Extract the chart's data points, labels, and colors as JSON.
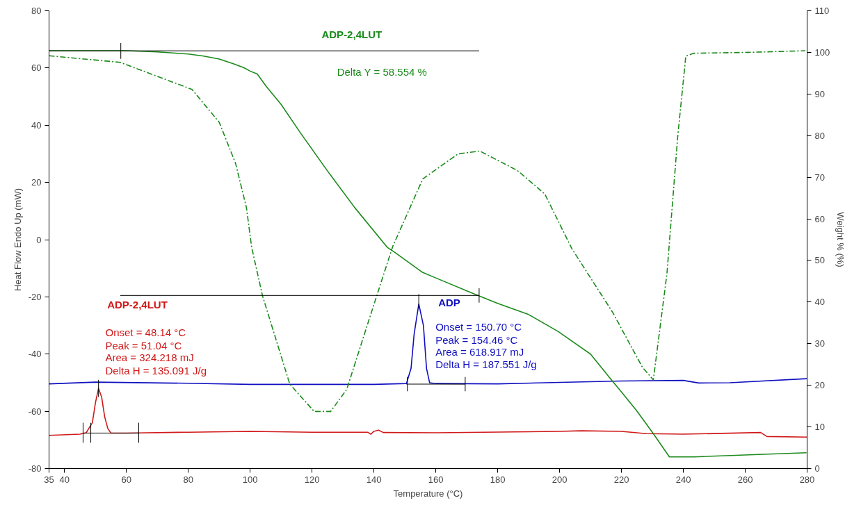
{
  "chart_data": {
    "type": "line",
    "xlabel": "Temperature (°C)",
    "ylabel": "Heat Flow Endo Up (mW)",
    "y2label": "Weight % (%)",
    "xlim": [
      35,
      280
    ],
    "xticks": [
      35,
      40,
      60,
      80,
      100,
      120,
      140,
      160,
      180,
      200,
      220,
      240,
      260,
      280
    ],
    "ylim": [
      -80,
      80
    ],
    "yticks": [
      -80,
      -60,
      -40,
      -20,
      0,
      20,
      40,
      60,
      80
    ],
    "y2lim": [
      0,
      110
    ],
    "y2ticks": [
      0,
      10,
      20,
      30,
      40,
      50,
      60,
      70,
      80,
      90,
      100,
      110
    ],
    "grid": false,
    "marker": "none",
    "series": [
      {
        "color": "#d01818",
        "line_style": "solid",
        "x": [
          35,
          45,
          47,
          49,
          50,
          51,
          52,
          53,
          54,
          55,
          60,
          80,
          100,
          120,
          138,
          139,
          140,
          141.5,
          143,
          160,
          200,
          207,
          220,
          228,
          240,
          265,
          267,
          280
        ],
        "values": [
          -68.4,
          -68,
          -67.5,
          -64,
          -57,
          -52,
          -55,
          -62,
          -66,
          -67.6,
          -67.6,
          -67.3,
          -67,
          -67.3,
          -67.3,
          -68,
          -67,
          -66.6,
          -67.4,
          -67.5,
          -67,
          -66.8,
          -67,
          -67.8,
          -68,
          -67.4,
          -68.8,
          -69
        ]
      },
      {
        "color": "#1010c0",
        "line_style": "solid",
        "x": [
          35,
          50,
          80,
          100,
          140,
          150.5,
          152,
          153,
          154.5,
          156,
          157,
          158,
          160,
          180,
          200,
          220,
          240,
          245,
          255,
          280
        ],
        "values": [
          -50.4,
          -49.8,
          -50.2,
          -50.6,
          -50.6,
          -50.3,
          -45,
          -33,
          -22.5,
          -30,
          -45,
          -50,
          -50.3,
          -50.4,
          -49.9,
          -49.4,
          -49.2,
          -50.1,
          -50,
          -48.6
        ]
      },
      {
        "color": "#1a8a1a",
        "line_style": "solid",
        "axis": "y2",
        "x": [
          35,
          60,
          70,
          80,
          85,
          90,
          94.4,
          98,
          100,
          102.3,
          105,
          110,
          116.3,
          125,
          133.8,
          144.4,
          147,
          155.8,
          160,
          172.6,
          180,
          190,
          199.6,
          210,
          217.1,
          220,
          225,
          230.3,
          235.5,
          243.4,
          279.8
        ],
        "values": [
          100.4,
          100.4,
          100.1,
          99.6,
          99.1,
          98.4,
          97.3,
          96.3,
          95.5,
          94.8,
          92,
          87.5,
          80.6,
          71.5,
          62.7,
          53.1,
          51.8,
          47.1,
          45.8,
          41.9,
          39.7,
          37,
          32.9,
          27.5,
          21,
          18.4,
          13.8,
          8.4,
          2.8,
          2.8,
          3.8
        ]
      },
      {
        "color": "#1a8a1a",
        "line_style": "dashdot",
        "axis": "y2",
        "x": [
          35,
          58,
          81.2,
          90,
          95.3,
          98.8,
          100.5,
          104,
          112.8,
          120.7,
          126,
          131.2,
          140.9,
          146.1,
          155.8,
          167.2,
          174.2,
          186.4,
          195.2,
          204,
          217.1,
          226.8,
          230.3,
          234.7,
          238.2,
          240.8,
          243.4,
          261,
          279.4
        ],
        "values": [
          99.2,
          97.6,
          91.1,
          83.2,
          73.3,
          62.7,
          53.1,
          41.5,
          20.3,
          13.7,
          13.7,
          19,
          41.5,
          53.4,
          69.6,
          75.6,
          76.3,
          71.6,
          66,
          52.8,
          37.6,
          24.3,
          21.3,
          46.8,
          79.9,
          99.1,
          99.8,
          100,
          100.4
        ]
      },
      {
        "color": "#000000",
        "line_style": "solid",
        "x": [
          35,
          174
        ],
        "values": [
          66,
          66
        ]
      },
      {
        "color": "#000000",
        "line_style": "solid",
        "x": [
          58,
          174
        ],
        "values": [
          -19.5,
          -19.5
        ]
      },
      {
        "color": "#000000",
        "line_style": "solid",
        "x": [
          46,
          64
        ],
        "values": [
          -67.6,
          -67.6
        ]
      },
      {
        "color": "#000000",
        "line_style": "solid",
        "x": [
          150.5,
          169.5
        ],
        "values": [
          -50.5,
          -50.5
        ]
      },
      {
        "color": "#000000",
        "line_style": "solid",
        "x": [
          58.2,
          58.2
        ],
        "values": [
          63.2,
          68.7
        ]
      },
      {
        "color": "#000000",
        "line_style": "solid",
        "x": [
          174,
          174
        ],
        "values": [
          -22,
          -17
        ]
      },
      {
        "color": "#000000",
        "line_style": "solid",
        "x": [
          46,
          46
        ],
        "values": [
          -71,
          -64
        ]
      },
      {
        "color": "#000000",
        "line_style": "solid",
        "x": [
          48.5,
          48.5
        ],
        "values": [
          -71,
          -64
        ]
      },
      {
        "color": "#000000",
        "line_style": "solid",
        "x": [
          64,
          64
        ],
        "values": [
          -71,
          -64
        ]
      },
      {
        "color": "#000000",
        "line_style": "solid",
        "x": [
          51,
          51
        ],
        "values": [
          -55,
          -49
        ]
      },
      {
        "color": "#000000",
        "line_style": "solid",
        "x": [
          150.8,
          150.8
        ],
        "values": [
          -53,
          -48
        ]
      },
      {
        "color": "#000000",
        "line_style": "solid",
        "x": [
          154.5,
          154.5
        ],
        "values": [
          -24,
          -19
        ]
      },
      {
        "color": "#000000",
        "line_style": "solid",
        "x": [
          169.5,
          169.5
        ],
        "values": [
          -53,
          -48
        ]
      }
    ],
    "annotations": [
      "ADP-2,4LUT",
      "Delta Y = 58.554 %",
      "ADP-2,4LUT",
      "Onset = 48.14 °C",
      "Peak = 51.04 °C",
      "Area = 324.218 mJ",
      "Delta H = 135.091 J/g",
      "ADP",
      "Onset = 150.70 °C",
      "Peak = 154.46 °C",
      "Area = 618.917 mJ",
      "Delta H = 187.551 J/g"
    ]
  }
}
